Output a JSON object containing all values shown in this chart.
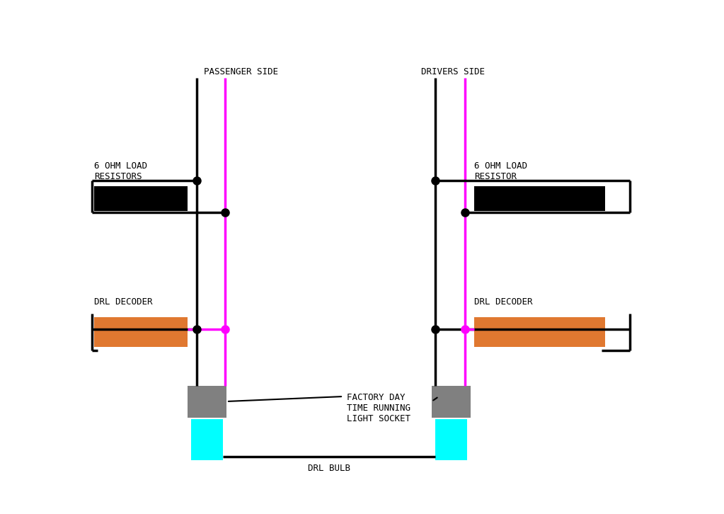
{
  "background_color": "#ffffff",
  "passenger_label": "PASSENGER SIDE",
  "drivers_label": "DRIVERS SIDE",
  "drl_decoder_label": "DRL DECODER",
  "load_resistor_label_left": "6 OHM LOAD\nRESISTORS",
  "load_resistor_label_right": "6 OHM LOAD\nRESISTOR",
  "socket_label": "FACTORY DAY\nTIME RUNNING\nLIGHT SOCKET",
  "bulb_label": "DRL BULB",
  "black_wire_color": "#000000",
  "magenta_wire_color": "#ff00ff",
  "decoder_box_color": "#000000",
  "resistor_box_color": "#e07830",
  "socket_box_color": "#808080",
  "bulb_box_color": "#00ffff",
  "figsize": [
    10.23,
    7.26
  ],
  "dpi": 100
}
